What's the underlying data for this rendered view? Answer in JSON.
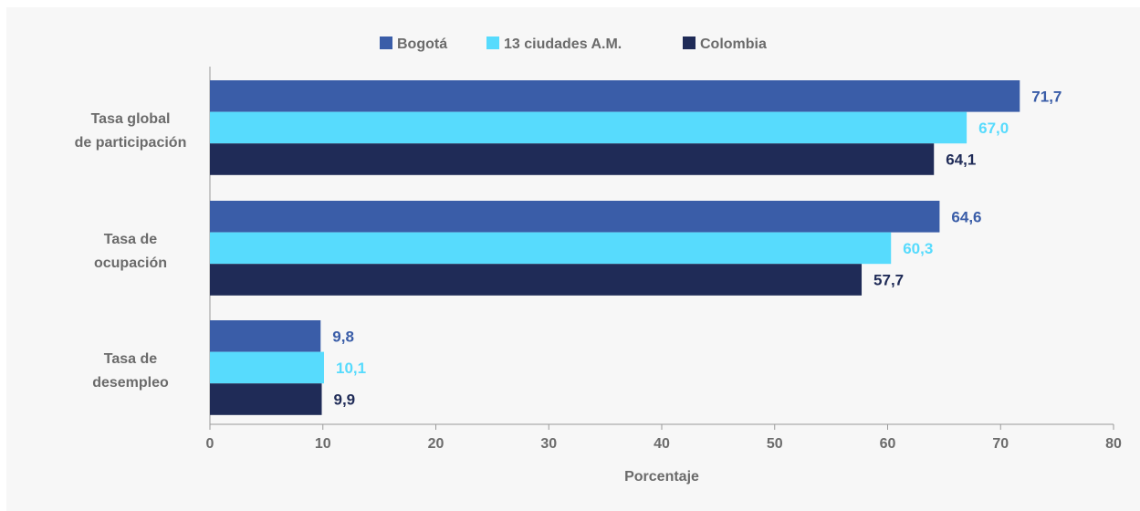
{
  "chart_data": {
    "type": "bar",
    "orientation": "horizontal",
    "categories": [
      [
        "Tasa global",
        "de participación"
      ],
      [
        "Tasa de",
        "ocupación"
      ],
      [
        "Tasa de",
        "desempleo"
      ]
    ],
    "series": [
      {
        "name": "Bogotá",
        "color": "#3a5da8",
        "label_color": "#3a5da8",
        "values": [
          71.7,
          64.6,
          9.8
        ],
        "labels": [
          "71,7",
          "64,6",
          "9,8"
        ]
      },
      {
        "name": "13 ciudades A.M.",
        "color": "#57dbfd",
        "label_color": "#57dbfd",
        "values": [
          67.0,
          60.3,
          10.1
        ],
        "labels": [
          "67,0",
          "60,3",
          "10,1"
        ]
      },
      {
        "name": "Colombia",
        "color": "#1f2b57",
        "label_color": "#1f2b57",
        "values": [
          64.1,
          57.7,
          9.9
        ],
        "labels": [
          "64,1",
          "57,7",
          "9,9"
        ]
      }
    ],
    "xlim": [
      0,
      80
    ],
    "xticks": [
      0,
      10,
      20,
      30,
      40,
      50,
      60,
      70,
      80
    ],
    "xlabel": "Porcentaje",
    "ylabel": "",
    "title": "",
    "grid": false,
    "legend_position": "top-center"
  }
}
